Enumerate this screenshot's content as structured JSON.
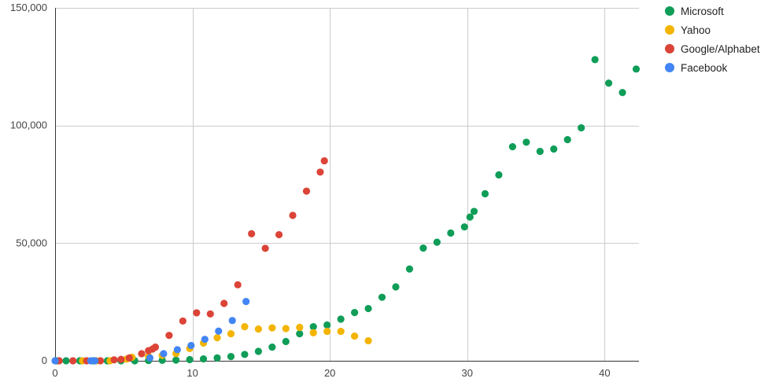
{
  "chart_data": {
    "type": "scatter",
    "title": "",
    "xlabel": "",
    "ylabel": "",
    "xlim": [
      0,
      42.5
    ],
    "ylim": [
      0,
      150000
    ],
    "x_ticks": [
      0,
      10,
      20,
      30,
      40
    ],
    "x_tick_labels": [
      "0",
      "10",
      "20",
      "30",
      "40"
    ],
    "y_ticks": [
      0,
      50000,
      100000,
      150000
    ],
    "y_tick_labels": [
      "0",
      "50,000",
      "100,000",
      "150,000"
    ],
    "grid": true,
    "legend_position": "right",
    "series": [
      {
        "name": "Microsoft",
        "color": "#0f9d58",
        "points": [
          [
            0.1,
            0
          ],
          [
            0.8,
            0
          ],
          [
            1.8,
            0
          ],
          [
            2.8,
            0
          ],
          [
            3.8,
            0
          ],
          [
            4.8,
            0
          ],
          [
            5.8,
            0
          ],
          [
            6.8,
            100
          ],
          [
            7.8,
            200
          ],
          [
            8.8,
            300
          ],
          [
            9.8,
            500
          ],
          [
            10.8,
            800
          ],
          [
            11.8,
            1200
          ],
          [
            12.8,
            1800
          ],
          [
            13.8,
            2700
          ],
          [
            14.8,
            4000
          ],
          [
            15.8,
            5800
          ],
          [
            16.8,
            8200
          ],
          [
            17.8,
            11500
          ],
          [
            18.8,
            14500
          ],
          [
            19.8,
            15200
          ],
          [
            20.8,
            17700
          ],
          [
            21.8,
            20500
          ],
          [
            22.8,
            22200
          ],
          [
            23.8,
            27000
          ],
          [
            24.8,
            31400
          ],
          [
            25.8,
            39000
          ],
          [
            26.8,
            47900
          ],
          [
            27.8,
            50400
          ],
          [
            28.8,
            54300
          ],
          [
            29.8,
            56900
          ],
          [
            30.2,
            61100
          ],
          [
            30.5,
            63500
          ],
          [
            31.3,
            71000
          ],
          [
            32.3,
            79000
          ],
          [
            33.3,
            91000
          ],
          [
            34.3,
            92900
          ],
          [
            35.3,
            89000
          ],
          [
            36.3,
            90000
          ],
          [
            37.3,
            94000
          ],
          [
            38.3,
            99000
          ],
          [
            39.3,
            128000
          ],
          [
            40.3,
            118000
          ],
          [
            41.3,
            114000
          ],
          [
            42.3,
            124000
          ]
        ]
      },
      {
        "name": "Yahoo",
        "color": "#f4b400",
        "points": [
          [
            2.0,
            0
          ],
          [
            3.0,
            0
          ],
          [
            4.0,
            0
          ],
          [
            5.2,
            700
          ],
          [
            5.6,
            1500
          ],
          [
            6.8,
            1900
          ],
          [
            7.8,
            2300
          ],
          [
            8.8,
            3100
          ],
          [
            9.8,
            5200
          ],
          [
            10.8,
            7500
          ],
          [
            11.8,
            9800
          ],
          [
            12.8,
            11500
          ],
          [
            13.8,
            14500
          ],
          [
            14.8,
            13500
          ],
          [
            15.8,
            14000
          ],
          [
            16.8,
            13700
          ],
          [
            17.8,
            14200
          ],
          [
            18.8,
            11900
          ],
          [
            19.8,
            12500
          ],
          [
            20.8,
            12500
          ],
          [
            21.8,
            10500
          ],
          [
            22.8,
            8500
          ]
        ]
      },
      {
        "name": "Google/Alphabet",
        "color": "#db4437",
        "points": [
          [
            0.3,
            0
          ],
          [
            1.3,
            0
          ],
          [
            2.3,
            0
          ],
          [
            3.3,
            0
          ],
          [
            4.3,
            400
          ],
          [
            4.8,
            600
          ],
          [
            5.4,
            1200
          ],
          [
            6.3,
            3000
          ],
          [
            6.8,
            4300
          ],
          [
            7.1,
            5000
          ],
          [
            7.3,
            5800
          ],
          [
            8.3,
            10800
          ],
          [
            9.3,
            16900
          ],
          [
            10.3,
            20400
          ],
          [
            11.3,
            19900
          ],
          [
            12.3,
            24400
          ],
          [
            13.3,
            32300
          ],
          [
            14.3,
            54000
          ],
          [
            15.3,
            47800
          ],
          [
            16.3,
            53600
          ],
          [
            17.3,
            61800
          ],
          [
            18.3,
            72100
          ],
          [
            19.3,
            80200
          ],
          [
            19.6,
            85000
          ]
        ]
      },
      {
        "name": "Facebook",
        "color": "#4285f4",
        "points": [
          [
            0.0,
            0
          ],
          [
            2.6,
            0
          ],
          [
            2.9,
            0
          ],
          [
            6.9,
            1200
          ],
          [
            7.9,
            3000
          ],
          [
            8.9,
            4700
          ],
          [
            9.9,
            6500
          ],
          [
            10.9,
            9100
          ],
          [
            11.9,
            12600
          ],
          [
            12.9,
            17100
          ],
          [
            13.9,
            25200
          ]
        ]
      }
    ]
  }
}
